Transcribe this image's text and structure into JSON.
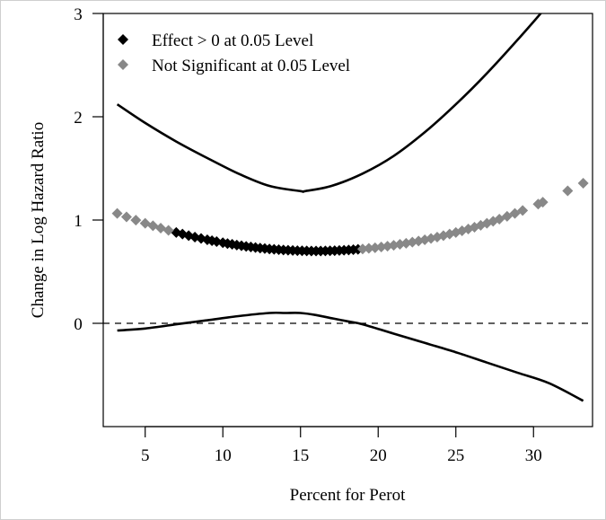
{
  "chart_data": {
    "type": "scatter",
    "xlabel": "Percent for Perot",
    "ylabel": "Change in Log Hazard Ratio",
    "xlim": [
      2.3,
      33.8
    ],
    "ylim": [
      -1.0,
      3.0
    ],
    "xticks": [
      5,
      10,
      15,
      20,
      25,
      30
    ],
    "yticks": [
      0,
      1,
      2,
      3
    ],
    "reference_line": {
      "y": 0,
      "style": "dashed"
    },
    "legend": {
      "placement": "top-left",
      "entries": [
        {
          "label": "Effect > 0 at 0.05 Level",
          "color": "#000000",
          "marker": "diamond"
        },
        {
          "label": "Not Significant at 0.05 Level",
          "color": "#888888",
          "marker": "diamond"
        }
      ]
    },
    "effect": {
      "formula": "quadratic",
      "vertex_x": 16.0,
      "vertex_y": 0.7,
      "curvature": 0.00222
    },
    "significance_threshold_x": {
      "lower": 7.0,
      "upper": 18.7
    },
    "series": [
      {
        "name": "Effect > 0 at 0.05 Level",
        "color": "#000000",
        "x": [
          7.0,
          7.4,
          7.8,
          8.2,
          8.6,
          9.0,
          9.3,
          9.6,
          10.0,
          10.3,
          10.6,
          10.9,
          11.2,
          11.5,
          11.8,
          12.1,
          12.4,
          12.7,
          13.0,
          13.3,
          13.6,
          13.9,
          14.2,
          14.5,
          14.8,
          15.1,
          15.4,
          15.7,
          16.0,
          16.3,
          16.6,
          16.9,
          17.2,
          17.5,
          17.8,
          18.1,
          18.4,
          18.7
        ]
      },
      {
        "name": "Not Significant at 0.05 Level",
        "color": "#888888",
        "x": [
          3.2,
          3.8,
          4.4,
          5.0,
          5.5,
          6.0,
          6.5,
          19.0,
          19.4,
          19.8,
          20.2,
          20.6,
          21.0,
          21.4,
          21.8,
          22.2,
          22.6,
          23.0,
          23.4,
          23.8,
          24.2,
          24.6,
          25.0,
          25.4,
          25.8,
          26.2,
          26.6,
          27.0,
          27.4,
          27.8,
          28.3,
          28.8,
          29.3,
          30.3,
          30.6,
          32.2,
          33.2
        ]
      }
    ],
    "upper_bound": {
      "x": [
        3.2,
        5,
        7,
        9,
        11,
        13,
        15,
        15.3,
        17,
        19,
        21,
        23,
        25,
        27,
        29,
        31,
        32.3
      ],
      "y": [
        2.12,
        1.94,
        1.76,
        1.6,
        1.45,
        1.33,
        1.28,
        1.28,
        1.33,
        1.45,
        1.62,
        1.85,
        2.12,
        2.42,
        2.75,
        3.1,
        3.4
      ]
    },
    "lower_bound": {
      "x": [
        3.2,
        5,
        7,
        9,
        11,
        13,
        14,
        15,
        16,
        17,
        18,
        19,
        21,
        23,
        25,
        27,
        29,
        31,
        33.2
      ],
      "y": [
        -0.07,
        -0.05,
        -0.01,
        0.03,
        0.07,
        0.1,
        0.1,
        0.1,
        0.08,
        0.05,
        0.02,
        -0.01,
        -0.1,
        -0.19,
        -0.28,
        -0.38,
        -0.48,
        -0.58,
        -0.75
      ]
    }
  }
}
